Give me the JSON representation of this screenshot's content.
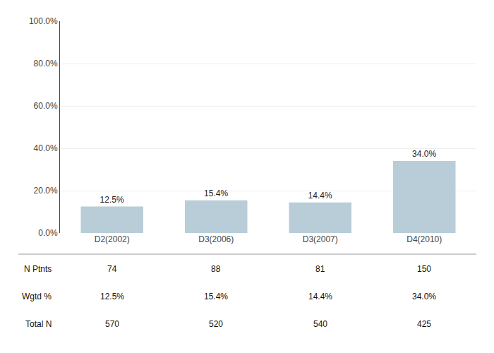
{
  "chart_data": {
    "type": "bar",
    "categories": [
      "D2(2002)",
      "D3(2006)",
      "D3(2007)",
      "D4(2010)"
    ],
    "values": [
      12.5,
      15.4,
      14.4,
      34.0
    ],
    "value_labels": [
      "12.5%",
      "15.4%",
      "14.4%",
      "34.0%"
    ],
    "data_labels": true,
    "color": "#b8cdd8",
    "ylim": [
      0,
      100
    ],
    "yticks": [
      {
        "value": 0,
        "label": "0.0%"
      },
      {
        "value": 20,
        "label": "20.0%"
      },
      {
        "value": 40,
        "label": "40.0%"
      },
      {
        "value": 60,
        "label": "60.0%"
      },
      {
        "value": 80,
        "label": "80.0%"
      },
      {
        "value": 100,
        "label": "100.0%"
      }
    ],
    "grid": true,
    "table": [
      {
        "label": "N Ptnts",
        "cells": [
          "74",
          "88",
          "81",
          "150"
        ]
      },
      {
        "label": "Wgtd %",
        "cells": [
          "12.5%",
          "15.4%",
          "14.4%",
          "34.0%"
        ]
      },
      {
        "label": "Total N",
        "cells": [
          "570",
          "520",
          "540",
          "425"
        ]
      }
    ]
  }
}
